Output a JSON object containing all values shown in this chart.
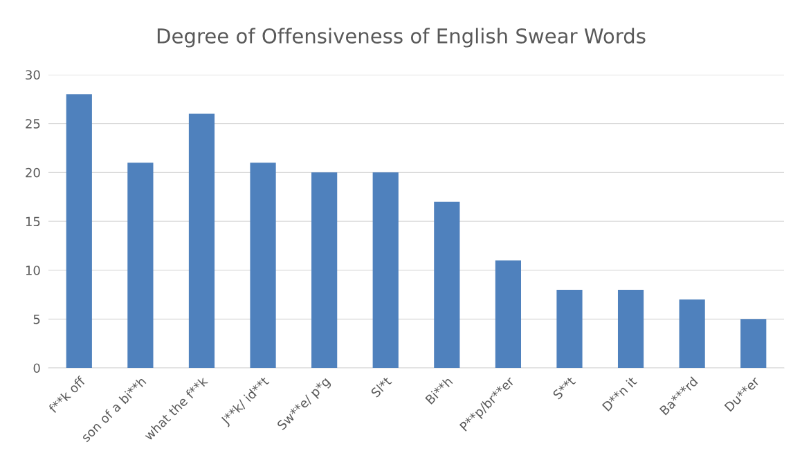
{
  "chart_data": {
    "type": "bar",
    "title": "Degree of Offensiveness of English Swear Words",
    "categories": [
      "f**k off",
      "son of a bi**h",
      "what the f**k",
      "J**k/ id**t",
      "Sw**e/ p*g",
      "Sl*t",
      "Bi**h",
      "P**p/br**er",
      "S**t",
      "D**n it",
      "Ba***rd",
      "Du**er"
    ],
    "values": [
      28,
      21,
      26,
      21,
      20,
      20,
      17,
      11,
      8,
      8,
      7,
      5
    ],
    "color": "#4f81bd",
    "ylim": [
      0,
      30
    ],
    "yticks": [
      0,
      5,
      10,
      15,
      20,
      25,
      30
    ],
    "grid": "y",
    "legend": false
  }
}
